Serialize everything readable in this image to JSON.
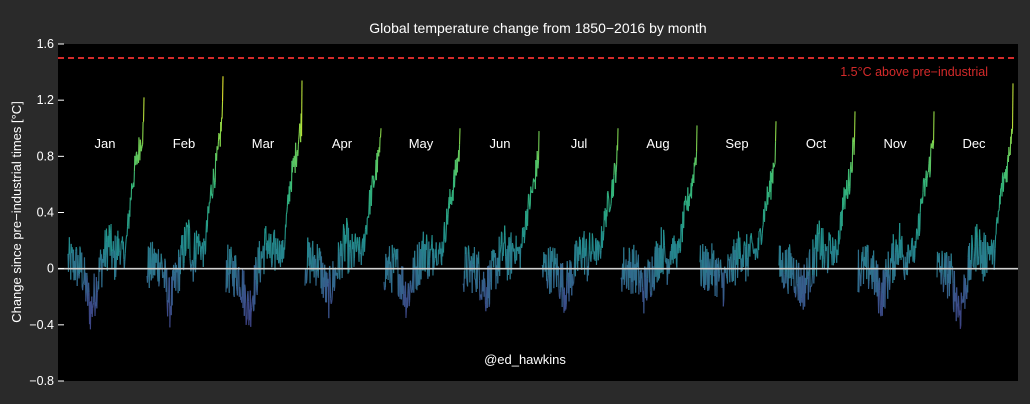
{
  "chart_data": {
    "type": "line",
    "title": "Global temperature change from 1850−2016 by month",
    "ylabel": "Change since pre−industrial times [°C]",
    "xlabel": "",
    "ylim": [
      -0.8,
      1.6
    ],
    "yticks": [
      "−0.8",
      "−0.4",
      "0",
      "0.4",
      "0.8",
      "1.2",
      "1.6"
    ],
    "grid": false,
    "legend": "none",
    "credit": "@ed_hawkins",
    "year_range": [
      1850,
      2016
    ],
    "categories": [
      "Jan",
      "Feb",
      "Mar",
      "Apr",
      "May",
      "Jun",
      "Jul",
      "Aug",
      "Sep",
      "Oct",
      "Nov",
      "Dec"
    ],
    "threshold": {
      "value": 1.5,
      "label": "1.5°C above pre−industrial",
      "color": "#d42a2a"
    },
    "zero_line_color": "#d0d0d0",
    "colormap": [
      "#3e2a75",
      "#3b528b",
      "#21908d",
      "#35b779",
      "#8fd744",
      "#fde725"
    ],
    "series": [
      {
        "name": "Jan",
        "final": 1.22,
        "anchors": [
          [
            1850,
            0.05
          ],
          [
            1880,
            0.0
          ],
          [
            1900,
            -0.3
          ],
          [
            1920,
            0.0
          ],
          [
            1940,
            0.2
          ],
          [
            1950,
            0.05
          ],
          [
            1960,
            0.15
          ],
          [
            1975,
            0.1
          ],
          [
            1990,
            0.6
          ],
          [
            2005,
            0.85
          ],
          [
            2015,
            1.0
          ],
          [
            2016,
            1.22
          ]
        ]
      },
      {
        "name": "Feb",
        "final": 1.37,
        "anchors": [
          [
            1850,
            0.0
          ],
          [
            1880,
            0.05
          ],
          [
            1900,
            -0.25
          ],
          [
            1920,
            0.0
          ],
          [
            1940,
            0.25
          ],
          [
            1950,
            0.05
          ],
          [
            1960,
            0.2
          ],
          [
            1975,
            0.1
          ],
          [
            1990,
            0.55
          ],
          [
            2005,
            0.8
          ],
          [
            2015,
            1.1
          ],
          [
            2016,
            1.37
          ]
        ]
      },
      {
        "name": "Mar",
        "final": 1.34,
        "anchors": [
          [
            1850,
            0.0
          ],
          [
            1880,
            -0.05
          ],
          [
            1900,
            -0.3
          ],
          [
            1920,
            0.0
          ],
          [
            1940,
            0.2
          ],
          [
            1950,
            0.05
          ],
          [
            1960,
            0.15
          ],
          [
            1975,
            0.1
          ],
          [
            1990,
            0.6
          ],
          [
            2005,
            0.85
          ],
          [
            2015,
            1.05
          ],
          [
            2016,
            1.34
          ]
        ]
      },
      {
        "name": "Apr",
        "final": 1.0,
        "anchors": [
          [
            1850,
            0.05
          ],
          [
            1880,
            0.05
          ],
          [
            1900,
            -0.2
          ],
          [
            1920,
            0.0
          ],
          [
            1940,
            0.2
          ],
          [
            1950,
            0.05
          ],
          [
            1960,
            0.15
          ],
          [
            1975,
            0.1
          ],
          [
            1990,
            0.45
          ],
          [
            2005,
            0.7
          ],
          [
            2015,
            0.85
          ],
          [
            2016,
            1.0
          ]
        ]
      },
      {
        "name": "May",
        "final": 1.0,
        "anchors": [
          [
            1850,
            0.0
          ],
          [
            1880,
            0.0
          ],
          [
            1900,
            -0.2
          ],
          [
            1920,
            0.0
          ],
          [
            1940,
            0.15
          ],
          [
            1950,
            0.05
          ],
          [
            1960,
            0.15
          ],
          [
            1975,
            0.1
          ],
          [
            1990,
            0.4
          ],
          [
            2005,
            0.65
          ],
          [
            2015,
            0.85
          ],
          [
            2016,
            1.0
          ]
        ]
      },
      {
        "name": "Jun",
        "final": 0.98,
        "anchors": [
          [
            1850,
            0.0
          ],
          [
            1880,
            0.0
          ],
          [
            1900,
            -0.15
          ],
          [
            1920,
            0.0
          ],
          [
            1940,
            0.15
          ],
          [
            1950,
            0.05
          ],
          [
            1960,
            0.15
          ],
          [
            1975,
            0.1
          ],
          [
            1990,
            0.4
          ],
          [
            2005,
            0.6
          ],
          [
            2015,
            0.8
          ],
          [
            2016,
            0.98
          ]
        ]
      },
      {
        "name": "Jul",
        "final": 1.0,
        "anchors": [
          [
            1850,
            0.0
          ],
          [
            1880,
            0.0
          ],
          [
            1900,
            -0.15
          ],
          [
            1920,
            0.0
          ],
          [
            1940,
            0.15
          ],
          [
            1950,
            0.05
          ],
          [
            1960,
            0.15
          ],
          [
            1975,
            0.1
          ],
          [
            1990,
            0.4
          ],
          [
            2005,
            0.6
          ],
          [
            2015,
            0.8
          ],
          [
            2016,
            1.0
          ]
        ]
      },
      {
        "name": "Aug",
        "final": 1.02,
        "anchors": [
          [
            1850,
            0.0
          ],
          [
            1880,
            0.0
          ],
          [
            1900,
            -0.15
          ],
          [
            1920,
            0.0
          ],
          [
            1940,
            0.15
          ],
          [
            1950,
            0.05
          ],
          [
            1960,
            0.15
          ],
          [
            1975,
            0.1
          ],
          [
            1990,
            0.4
          ],
          [
            2005,
            0.6
          ],
          [
            2015,
            0.85
          ],
          [
            2016,
            1.02
          ]
        ]
      },
      {
        "name": "Sep",
        "final": 1.05,
        "anchors": [
          [
            1850,
            0.0
          ],
          [
            1880,
            0.0
          ],
          [
            1900,
            -0.1
          ],
          [
            1920,
            0.0
          ],
          [
            1940,
            0.15
          ],
          [
            1950,
            0.05
          ],
          [
            1960,
            0.15
          ],
          [
            1975,
            0.1
          ],
          [
            1990,
            0.4
          ],
          [
            2005,
            0.6
          ],
          [
            2015,
            0.85
          ],
          [
            2016,
            1.05
          ]
        ]
      },
      {
        "name": "Oct",
        "final": 1.12,
        "anchors": [
          [
            1850,
            0.0
          ],
          [
            1880,
            0.0
          ],
          [
            1900,
            -0.15
          ],
          [
            1920,
            0.0
          ],
          [
            1940,
            0.2
          ],
          [
            1950,
            0.05
          ],
          [
            1960,
            0.15
          ],
          [
            1975,
            0.1
          ],
          [
            1990,
            0.45
          ],
          [
            2005,
            0.65
          ],
          [
            2015,
            0.95
          ],
          [
            2016,
            1.12
          ]
        ]
      },
      {
        "name": "Nov",
        "final": 1.12,
        "anchors": [
          [
            1850,
            0.0
          ],
          [
            1880,
            0.0
          ],
          [
            1900,
            -0.2
          ],
          [
            1920,
            0.0
          ],
          [
            1940,
            0.2
          ],
          [
            1950,
            0.05
          ],
          [
            1960,
            0.15
          ],
          [
            1975,
            0.1
          ],
          [
            1990,
            0.5
          ],
          [
            2005,
            0.7
          ],
          [
            2015,
            0.95
          ],
          [
            2016,
            1.12
          ]
        ]
      },
      {
        "name": "Dec",
        "final": 1.32,
        "anchors": [
          [
            1850,
            0.0
          ],
          [
            1880,
            -0.05
          ],
          [
            1900,
            -0.3
          ],
          [
            1920,
            0.0
          ],
          [
            1940,
            0.2
          ],
          [
            1950,
            0.05
          ],
          [
            1960,
            0.15
          ],
          [
            1975,
            0.1
          ],
          [
            1990,
            0.55
          ],
          [
            2005,
            0.75
          ],
          [
            2015,
            1.05
          ],
          [
            2016,
            1.32
          ]
        ]
      }
    ]
  }
}
